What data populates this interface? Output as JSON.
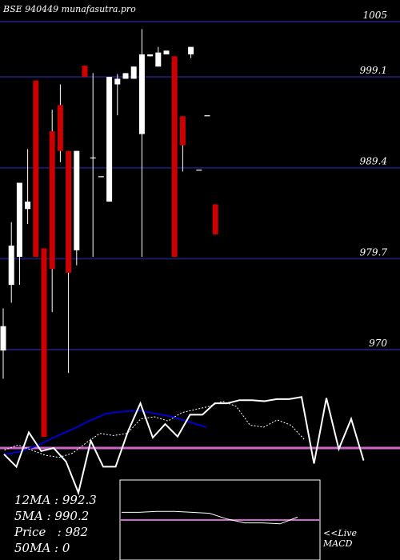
{
  "chart_data": {
    "type": "candlestick",
    "title": "BSE 940449 munafasutra.pro",
    "y_ticks": [
      "1005",
      "999.1",
      "989.4",
      "979.7",
      "970"
    ],
    "tick_values": [
      1005,
      999.1,
      989.4,
      979.7,
      970
    ],
    "stats": [
      "12MA : 992.3",
      "5MA : 990.2",
      "Price   : 982",
      "50MA : 0"
    ],
    "macd_label": [
      "<<Live",
      "MACD"
    ],
    "colors": {
      "up": "#ffffff",
      "down": "#cc0000",
      "gridline": "#1a1a66",
      "ma_fast": "#0000cc",
      "signal": "#cc66cc",
      "oscillator": "#ffffff"
    },
    "candles": [
      {
        "o": 972.5,
        "c": 969.9,
        "h": 974.4,
        "l": 966.9,
        "up": true
      },
      {
        "o": 981.1,
        "c": 976.9,
        "h": 983.6,
        "l": 975.0,
        "up": true
      },
      {
        "o": 987.8,
        "c": 979.9,
        "h": 987.8,
        "l": 976.9,
        "up": true
      },
      {
        "o": 985.0,
        "c": 985.8,
        "h": 991.4,
        "l": 983.4,
        "up": true
      },
      {
        "o": 998.7,
        "c": 979.9,
        "h": 998.7,
        "l": 979.9,
        "up": false
      },
      {
        "o": 980.8,
        "c": 960.7,
        "h": 980.8,
        "l": 960.7,
        "up": false
      },
      {
        "o": 993.3,
        "c": 978.6,
        "h": 995.6,
        "l": 974.0,
        "up": false
      },
      {
        "o": 996.1,
        "c": 991.2,
        "h": 998.3,
        "l": 990.0,
        "up": false
      },
      {
        "o": 991.2,
        "c": 978.2,
        "h": 991.2,
        "l": 967.5,
        "up": false
      },
      {
        "o": 991.2,
        "c": 980.6,
        "h": 991.2,
        "l": 979.0,
        "up": true
      },
      {
        "o": 1000.3,
        "c": 999.1,
        "h": 1000.3,
        "l": 999.1,
        "up": false
      },
      {
        "o": 990.5,
        "c": 990.4,
        "h": 999.5,
        "l": 979.9,
        "up": true
      },
      {
        "o": 988.5,
        "c": 988.4,
        "h": 988.5,
        "l": 988.4,
        "up": true
      },
      {
        "o": 999.1,
        "c": 985.8,
        "h": 999.1,
        "l": 985.8,
        "up": true
      },
      {
        "o": 998.9,
        "c": 998.3,
        "h": 999.4,
        "l": 995.0,
        "up": true
      },
      {
        "o": 999.5,
        "c": 998.9,
        "h": 999.5,
        "l": 998.9,
        "up": true
      },
      {
        "o": 1000.2,
        "c": 998.9,
        "h": 1000.2,
        "l": 998.9,
        "up": true
      },
      {
        "o": 1001.5,
        "c": 993.0,
        "h": 1004.2,
        "l": 979.9,
        "up": true
      },
      {
        "o": 1001.5,
        "c": 1001.3,
        "h": 1001.5,
        "l": 1001.3,
        "up": true
      },
      {
        "o": 1001.7,
        "c": 1000.2,
        "h": 1002.3,
        "l": 1000.2,
        "up": true
      },
      {
        "o": 1001.9,
        "c": 1001.5,
        "h": 1001.9,
        "l": 1001.5,
        "up": true
      },
      {
        "o": 1001.3,
        "c": 979.9,
        "h": 1001.3,
        "l": 979.9,
        "up": false
      },
      {
        "o": 994.9,
        "c": 991.8,
        "h": 994.9,
        "l": 989.0,
        "up": false
      },
      {
        "o": 1002.3,
        "c": 1001.5,
        "h": 1002.3,
        "l": 1001.1,
        "up": true
      },
      {
        "o": 989.2,
        "c": 989.2,
        "h": 989.2,
        "l": 989.2,
        "up": true
      },
      {
        "o": 995.0,
        "c": 995.0,
        "h": 995.0,
        "l": 995.0,
        "up": true
      },
      {
        "o": 985.5,
        "c": 982.3,
        "h": 985.5,
        "l": 982.3,
        "up": false
      }
    ],
    "osc_main": [
      -0.6,
      -1.8,
      1.5,
      -0.3,
      0.0,
      -1.3,
      -4.3,
      0.7,
      -1.8,
      -1.8,
      1.6,
      4.3,
      1.0,
      2.3,
      1.1,
      3.2,
      3.2,
      4.3,
      4.3,
      4.6,
      4.6,
      4.5,
      4.7,
      4.7,
      4.9,
      -1.5,
      4.8,
      -0.1,
      2.8,
      -1.2
    ],
    "osc_dotted": [
      -0.2,
      0.3,
      -0.2,
      -0.7,
      -0.9,
      -0.5,
      0.5,
      1.4,
      1.2,
      1.4,
      2.8,
      3.0,
      2.6,
      3.4,
      3.7,
      4.0,
      4.5,
      4.0,
      2.2,
      2.0,
      2.7,
      2.2,
      0.8
    ],
    "osc_ma": [
      -0.6,
      -0.3,
      0.3,
      1.1,
      1.8,
      2.6,
      3.3,
      3.5,
      3.6,
      3.3,
      3.0,
      2.5,
      2.0
    ],
    "signal_level": 0.0,
    "macd_line": [
      0.8,
      0.8,
      0.9,
      0.9,
      0.8,
      0.7,
      0.1,
      -0.3,
      -0.3,
      -0.4,
      0.3
    ],
    "macd_signal": 0.0
  }
}
